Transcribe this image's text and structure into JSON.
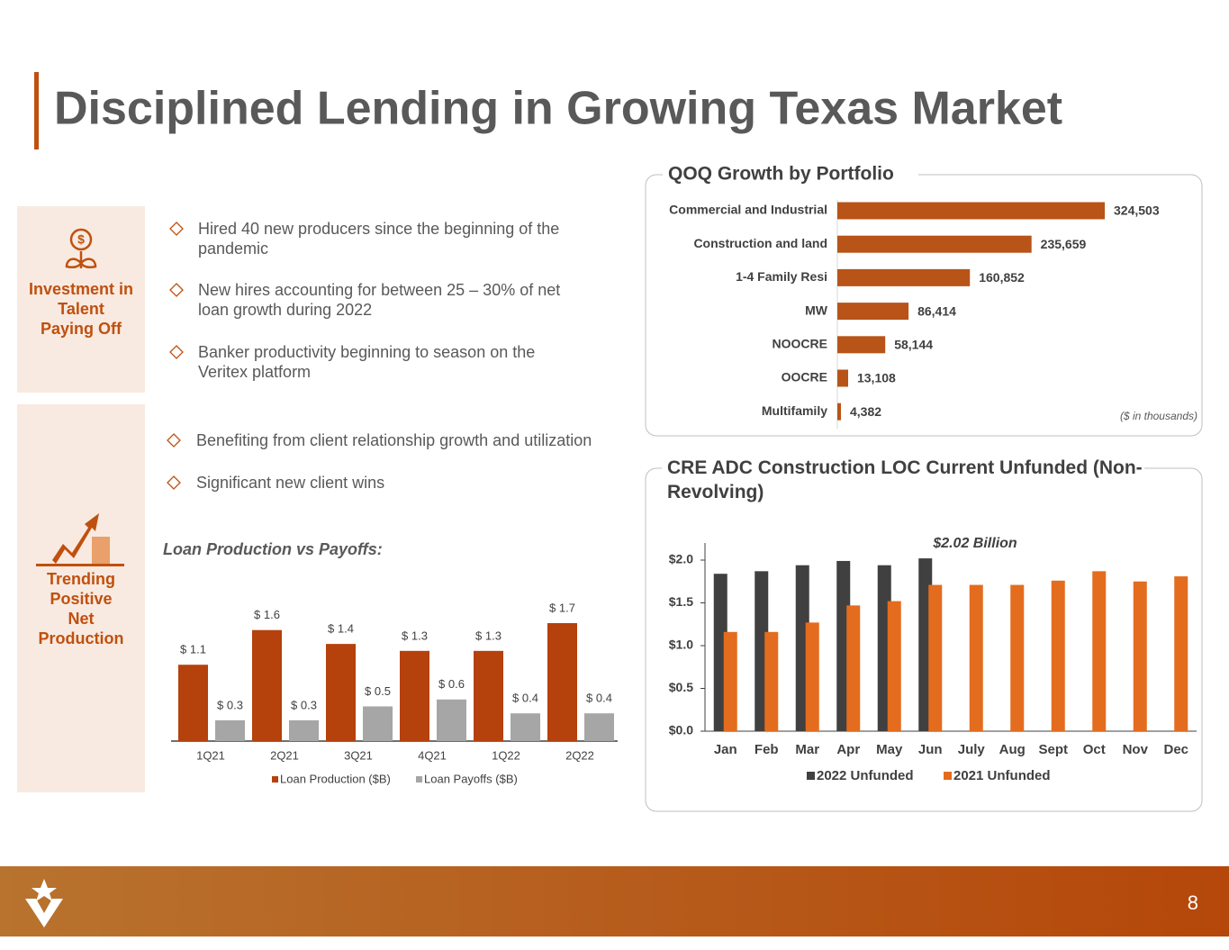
{
  "header": {
    "title": "Disciplined Lending in Growing Texas Market"
  },
  "sections": [
    {
      "label_lines": [
        "Investment in",
        "Talent",
        "Paying Off"
      ],
      "bullets": [
        "Hired 40 new producers since the beginning of the pandemic",
        "New hires accounting for between 25 – 30% of net loan growth during 2022",
        "Banker productivity beginning to season on the Veritex platform"
      ]
    },
    {
      "label_lines": [
        "Trending",
        "Positive",
        "Net",
        "Production"
      ],
      "bullets": [
        "Benefiting from client relationship growth and utilization",
        "Significant new client wins"
      ]
    }
  ],
  "chart_data": [
    {
      "type": "barh",
      "title": "QOQ Growth by Portfolio",
      "note": "($ in thousands)",
      "categories": [
        "Commercial and Industrial",
        "Construction and land",
        "1-4 Family Resi",
        "MW",
        "NOOCRE",
        "OOCRE",
        "Multifamily"
      ],
      "values": [
        324503,
        235659,
        160852,
        86414,
        58144,
        13108,
        4382
      ],
      "value_labels": [
        "324,503",
        "235,659",
        "160,852",
        "86,414",
        "58,144",
        "13,108",
        "4,382"
      ],
      "color": "#b85418"
    },
    {
      "type": "bar",
      "title": "Loan Production vs Payoffs:",
      "categories": [
        "1Q21",
        "2Q21",
        "3Q21",
        "4Q21",
        "1Q22",
        "2Q22"
      ],
      "series": [
        {
          "name": "Loan Production ($B)",
          "color": "#b5410c",
          "values": [
            1.1,
            1.6,
            1.4,
            1.3,
            1.3,
            1.7
          ],
          "value_labels": [
            "$ 1.1",
            "$ 1.6",
            "$ 1.4",
            "$ 1.3",
            "$ 1.3",
            "$ 1.7"
          ]
        },
        {
          "name": "Loan Payoffs ($B)",
          "color": "#a6a6a6",
          "values": [
            0.3,
            0.3,
            0.5,
            0.6,
            0.4,
            0.4
          ],
          "value_labels": [
            "$ 0.3",
            "$ 0.3",
            "$ 0.5",
            "$ 0.6",
            "$ 0.4",
            "$ 0.4"
          ]
        }
      ]
    },
    {
      "type": "bar",
      "title": "CRE ADC Construction LOC Current Unfunded (Non-Revolving)",
      "annotation": "$2.02 Billion",
      "categories": [
        "Jan",
        "Feb",
        "Mar",
        "Apr",
        "May",
        "Jun",
        "July",
        "Aug",
        "Sept",
        "Oct",
        "Nov",
        "Dec"
      ],
      "series": [
        {
          "name": "2022 Unfunded",
          "color": "#404040",
          "values": [
            1.84,
            1.87,
            1.94,
            1.99,
            1.94,
            2.02,
            null,
            null,
            null,
            null,
            null,
            null
          ]
        },
        {
          "name": "2021 Unfunded",
          "color": "#e46c1e",
          "values": [
            1.16,
            1.16,
            1.27,
            1.47,
            1.52,
            1.71,
            1.71,
            1.71,
            1.76,
            1.87,
            1.75,
            1.81
          ]
        }
      ],
      "ylim": [
        0,
        2.2
      ],
      "yticks": [
        {
          "value": 0,
          "label": "$0.0"
        },
        {
          "value": 0.5,
          "label": "$0.5"
        },
        {
          "value": 1,
          "label": "$1.0"
        },
        {
          "value": 1.5,
          "label": "$1.5"
        },
        {
          "value": 2,
          "label": "$2.0"
        }
      ]
    }
  ],
  "footer": {
    "page": "8"
  }
}
